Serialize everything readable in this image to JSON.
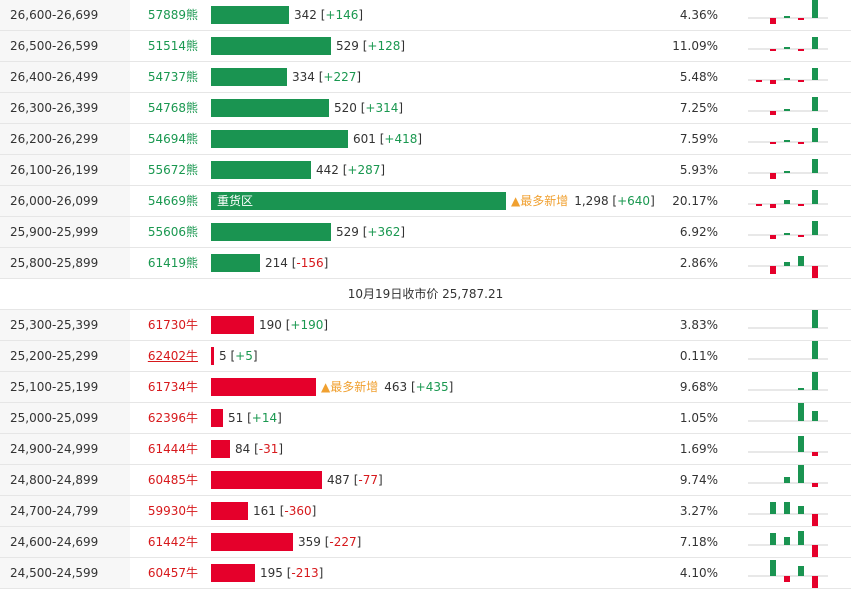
{
  "colors": {
    "green": "#1a9451",
    "red": "#e5002b",
    "accent": "#f0a030"
  },
  "bar_scale_max": 1298,
  "upper_rows": [
    {
      "range": "26,600-26,699",
      "code": "57889熊",
      "value": 342,
      "value_text": "342",
      "change": "+146",
      "pct": "4.36%",
      "spark": [
        0,
        -3,
        1,
        -1,
        9
      ]
    },
    {
      "range": "26,500-26,599",
      "code": "51514熊",
      "value": 529,
      "value_text": "529",
      "change": "+128",
      "pct": "11.09%",
      "spark": [
        0,
        -1,
        1,
        -1,
        6
      ]
    },
    {
      "range": "26,400-26,499",
      "code": "54737熊",
      "value": 334,
      "value_text": "334",
      "change": "+227",
      "pct": "5.48%",
      "spark": [
        -1,
        -2,
        1,
        -1,
        6
      ]
    },
    {
      "range": "26,300-26,399",
      "code": "54768熊",
      "value": 520,
      "value_text": "520",
      "change": "+314",
      "pct": "7.25%",
      "spark": [
        0,
        -2,
        1,
        0,
        7
      ]
    },
    {
      "range": "26,200-26,299",
      "code": "54694熊",
      "value": 601,
      "value_text": "601",
      "change": "+418",
      "pct": "7.59%",
      "spark": [
        0,
        -1,
        1,
        -1,
        7
      ]
    },
    {
      "range": "26,100-26,199",
      "code": "55672熊",
      "value": 442,
      "value_text": "442",
      "change": "+287",
      "pct": "5.93%",
      "spark": [
        0,
        -3,
        1,
        0,
        7
      ]
    },
    {
      "range": "26,000-26,099",
      "code": "54669熊",
      "value": 1298,
      "value_text": "1,298",
      "change": "+640",
      "pct": "20.17%",
      "spark": [
        -1,
        -2,
        2,
        -1,
        7
      ],
      "inner": "重货区",
      "most": "▲最多新增"
    },
    {
      "range": "25,900-25,999",
      "code": "55606熊",
      "value": 529,
      "value_text": "529",
      "change": "+362",
      "pct": "6.92%",
      "spark": [
        0,
        -2,
        1,
        -1,
        7
      ]
    },
    {
      "range": "25,800-25,899",
      "code": "61419熊",
      "value": 214,
      "value_text": "214",
      "change": "-156",
      "pct": "2.86%",
      "spark": [
        0,
        -4,
        2,
        5,
        -6
      ]
    }
  ],
  "divider": "10月19日收市价 25,787.21",
  "lower_rows": [
    {
      "range": "25,300-25,399",
      "code": "61730牛",
      "value": 190,
      "value_text": "190",
      "change": "+190",
      "pct": "3.83%",
      "spark": [
        0,
        0,
        0,
        0,
        9
      ]
    },
    {
      "range": "25,200-25,299",
      "code": "62402牛",
      "value": 5,
      "value_text": "5",
      "change": "+5",
      "pct": "0.11%",
      "spark": [
        0,
        0,
        0,
        0,
        9
      ],
      "link": true
    },
    {
      "range": "25,100-25,199",
      "code": "61734牛",
      "value": 463,
      "value_text": "463",
      "change": "+435",
      "pct": "9.68%",
      "spark": [
        0,
        0,
        0,
        1,
        9
      ],
      "most": "▲最多新增"
    },
    {
      "range": "25,000-25,099",
      "code": "62396牛",
      "value": 51,
      "value_text": "51",
      "change": "+14",
      "pct": "1.05%",
      "spark": [
        0,
        0,
        0,
        9,
        5
      ]
    },
    {
      "range": "24,900-24,999",
      "code": "61444牛",
      "value": 84,
      "value_text": "84",
      "change": "-31",
      "pct": "1.69%",
      "spark": [
        0,
        0,
        0,
        8,
        -2
      ]
    },
    {
      "range": "24,800-24,899",
      "code": "60485牛",
      "value": 487,
      "value_text": "487",
      "change": "-77",
      "pct": "9.74%",
      "spark": [
        0,
        0,
        3,
        9,
        -2
      ]
    },
    {
      "range": "24,700-24,799",
      "code": "59930牛",
      "value": 161,
      "value_text": "161",
      "change": "-360",
      "pct": "3.27%",
      "spark": [
        0,
        6,
        6,
        4,
        -8
      ]
    },
    {
      "range": "24,600-24,699",
      "code": "61442牛",
      "value": 359,
      "value_text": "359",
      "change": "-227",
      "pct": "7.18%",
      "spark": [
        0,
        6,
        4,
        7,
        -8
      ]
    },
    {
      "range": "24,500-24,599",
      "code": "60457牛",
      "value": 195,
      "value_text": "195",
      "change": "-213",
      "pct": "4.10%",
      "spark": [
        0,
        8,
        -3,
        5,
        -7
      ]
    }
  ]
}
